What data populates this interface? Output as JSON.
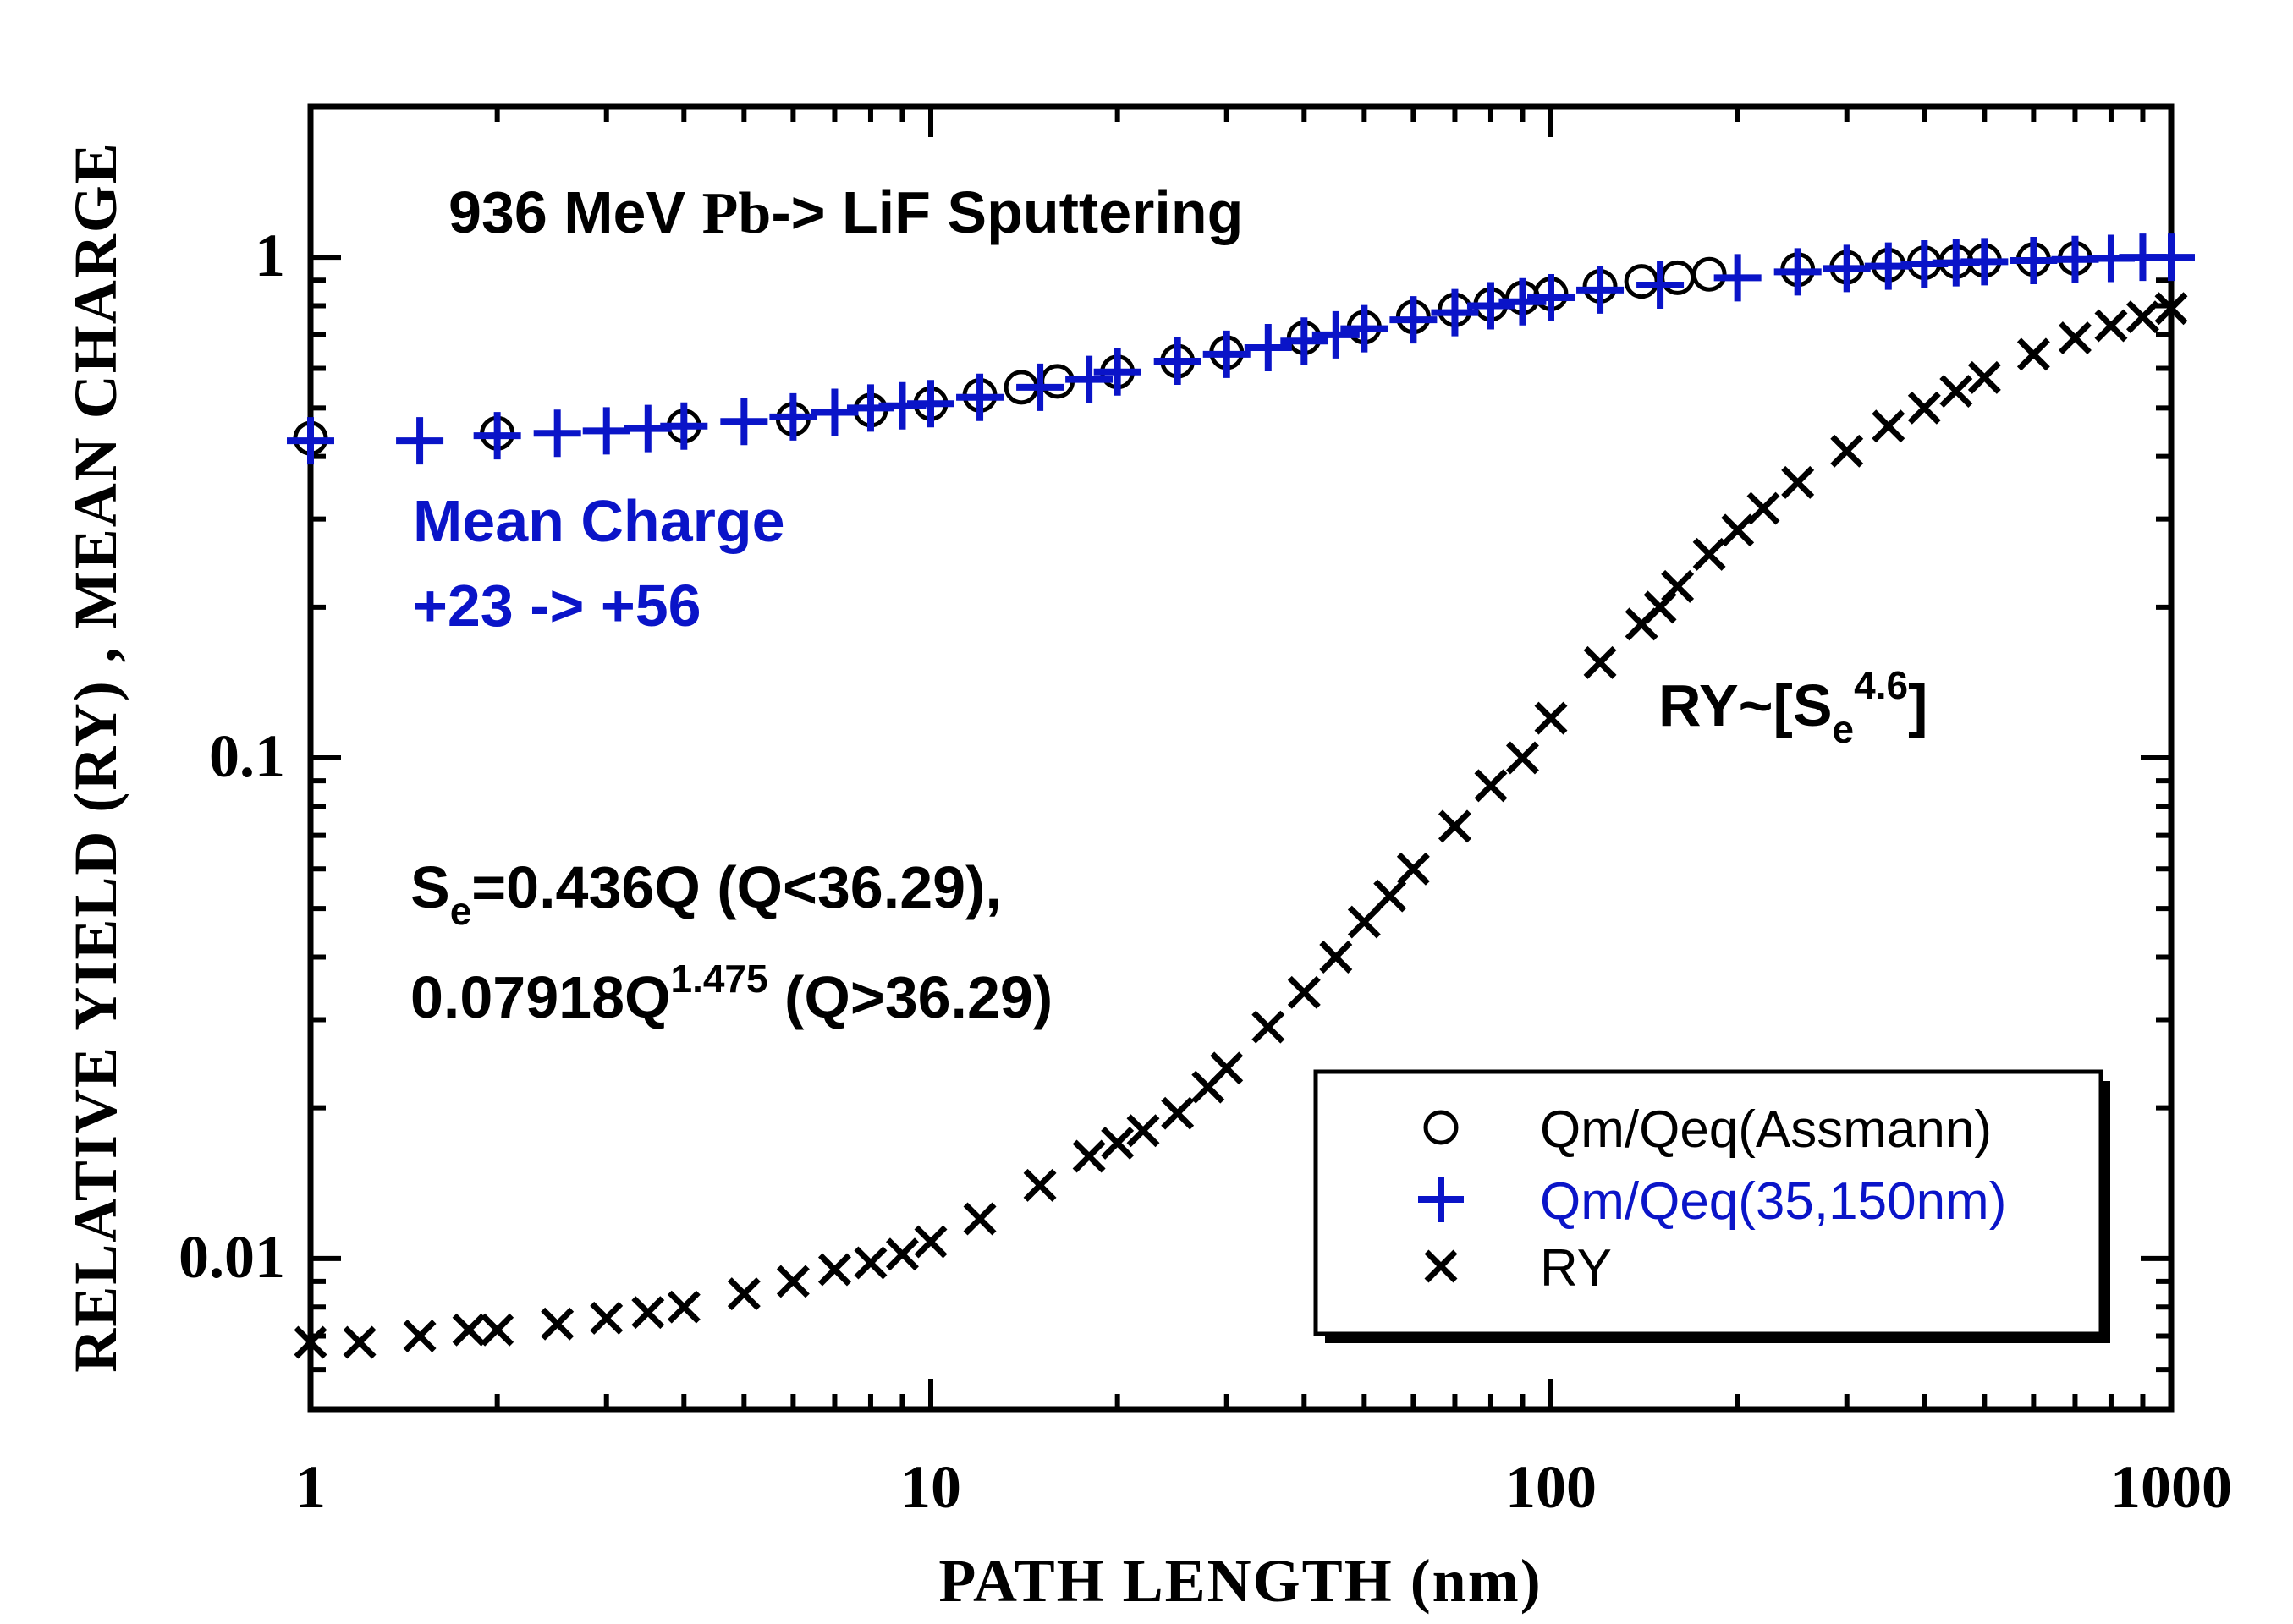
{
  "chart_data": {
    "type": "scatter",
    "title": "936 MeV Pb-> LiF   Sputtering",
    "xlabel": "PATH  LENGTH  (nm)",
    "ylabel": "RELATIVE YIELD (RY) , MEAN CHARGE",
    "xscale": "log",
    "yscale": "log",
    "xlim": [
      1,
      1000
    ],
    "ylim": [
      0.005,
      2
    ],
    "x_ticks": [
      "1",
      "10",
      "100",
      "1000"
    ],
    "y_ticks": [
      "0.01",
      "0.1",
      "1"
    ],
    "legend_position": "bottom-right",
    "series": [
      {
        "name": "Qm/Qeq(Assmann)",
        "marker": "circle",
        "color": "#000000",
        "x": [
          1,
          2,
          4,
          6,
          8,
          10,
          12,
          14,
          16,
          20,
          25,
          30,
          40,
          50,
          60,
          70,
          80,
          90,
          100,
          120,
          140,
          160,
          180,
          250,
          300,
          350,
          400,
          450,
          500,
          600,
          700
        ],
        "y": [
          0.435,
          0.445,
          0.46,
          0.475,
          0.495,
          0.51,
          0.53,
          0.55,
          0.565,
          0.59,
          0.62,
          0.645,
          0.69,
          0.725,
          0.76,
          0.785,
          0.805,
          0.83,
          0.845,
          0.875,
          0.895,
          0.91,
          0.925,
          0.945,
          0.955,
          0.965,
          0.975,
          0.98,
          0.985,
          0.99,
          0.995
        ]
      },
      {
        "name": "Qm/Qeq(35,150nm)",
        "marker": "plus",
        "color": "#0a14c8",
        "x": [
          1,
          1.5,
          2,
          2.5,
          3,
          3.5,
          4,
          5,
          6,
          7,
          8,
          9,
          10,
          12,
          15,
          18,
          20,
          25,
          30,
          35,
          40,
          45,
          50,
          60,
          70,
          80,
          90,
          100,
          120,
          150,
          200,
          250,
          300,
          350,
          400,
          450,
          500,
          600,
          700,
          800,
          900,
          1000
        ],
        "y": [
          0.43,
          0.43,
          0.44,
          0.445,
          0.45,
          0.455,
          0.46,
          0.47,
          0.48,
          0.49,
          0.5,
          0.505,
          0.51,
          0.525,
          0.55,
          0.57,
          0.59,
          0.62,
          0.64,
          0.66,
          0.68,
          0.7,
          0.72,
          0.75,
          0.775,
          0.8,
          0.815,
          0.83,
          0.86,
          0.88,
          0.91,
          0.935,
          0.95,
          0.96,
          0.97,
          0.975,
          0.98,
          0.985,
          0.99,
          0.995,
          1.0,
          1.0
        ]
      },
      {
        "name": "RY",
        "marker": "x",
        "color": "#000000",
        "x": [
          1,
          1.2,
          1.5,
          1.8,
          2,
          2.5,
          3,
          3.5,
          4,
          5,
          6,
          7,
          8,
          9,
          10,
          12,
          15,
          18,
          20,
          22,
          25,
          28,
          30,
          35,
          40,
          45,
          50,
          55,
          60,
          70,
          80,
          90,
          100,
          120,
          140,
          150,
          160,
          180,
          200,
          220,
          250,
          300,
          350,
          400,
          450,
          500,
          600,
          700,
          800,
          900,
          1000
        ],
        "y": [
          0.0068,
          0.0068,
          0.007,
          0.0072,
          0.0072,
          0.0074,
          0.0076,
          0.0078,
          0.008,
          0.0085,
          0.009,
          0.0095,
          0.0098,
          0.0102,
          0.0108,
          0.012,
          0.014,
          0.016,
          0.017,
          0.018,
          0.0195,
          0.022,
          0.024,
          0.029,
          0.034,
          0.04,
          0.047,
          0.053,
          0.06,
          0.073,
          0.088,
          0.1,
          0.12,
          0.155,
          0.185,
          0.2,
          0.22,
          0.255,
          0.285,
          0.315,
          0.355,
          0.41,
          0.46,
          0.5,
          0.54,
          0.575,
          0.64,
          0.69,
          0.73,
          0.76,
          0.79
        ]
      }
    ]
  },
  "annotations": {
    "title_part1": "936 MeV ",
    "title_pb": "Pb",
    "title_part2": "-> LiF   Sputtering",
    "mean_charge_line1": "Mean Charge",
    "mean_charge_line2": "+23 -> +56",
    "ry_prefix": "RY~[S",
    "ry_sub": "e",
    "ry_sup": "4.6",
    "ry_suffix": "]",
    "se_prefix": "S",
    "se_sub": "e",
    "se_rest": "=0.436Q (Q<36.29),",
    "se_line2_prefix": "0.07918Q",
    "se_line2_sup": "1.475",
    "se_line2_suffix": " (Q>36.29)"
  }
}
